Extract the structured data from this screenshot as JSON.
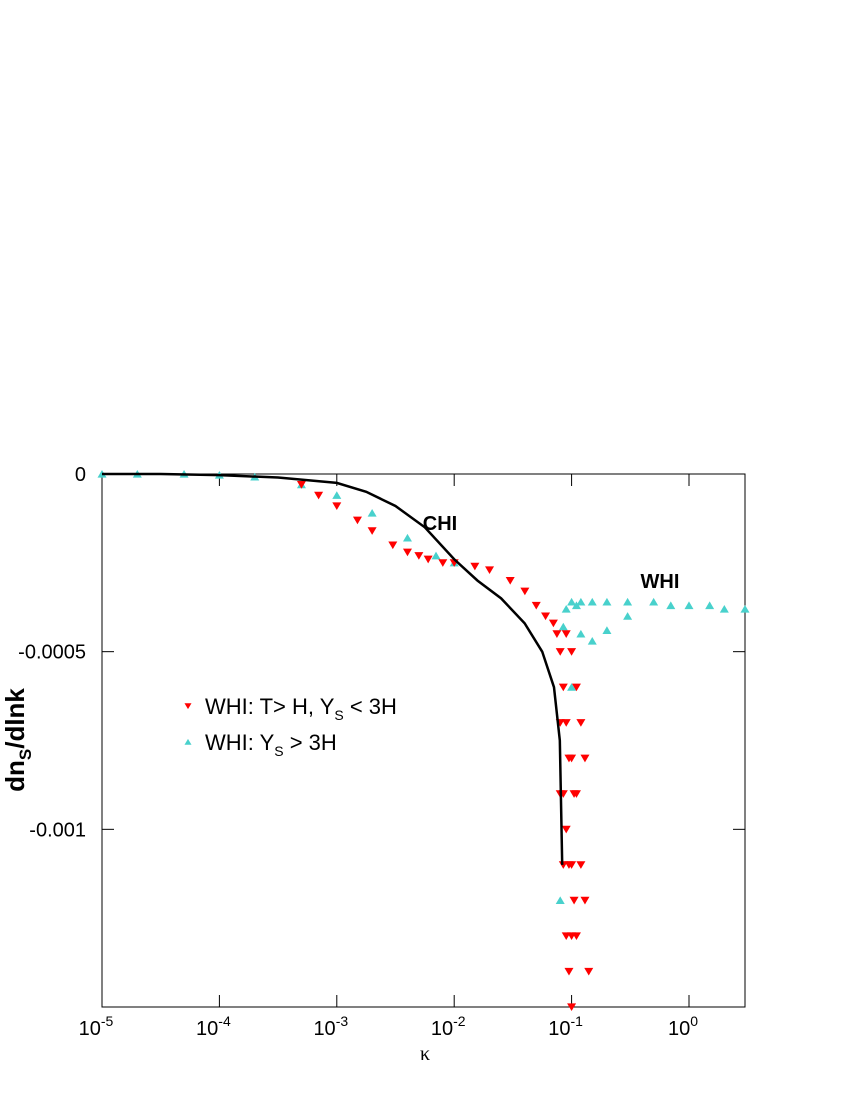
{
  "chart_data": {
    "type": "scatter",
    "x_label": "κ",
    "y_label": [
      {
        "text": "dn"
      },
      {
        "text": "S",
        "sub": true
      },
      {
        "text": "/dlnk"
      }
    ],
    "log_x": true,
    "xlim": [
      1e-05,
      3
    ],
    "ylim": [
      -0.0015,
      0
    ],
    "xticks": [
      {
        "value": 1e-05,
        "label": "10",
        "exponent": "-5"
      },
      {
        "value": 0.0001,
        "label": "10",
        "exponent": "-4"
      },
      {
        "value": 0.001,
        "label": "10",
        "exponent": "-3"
      },
      {
        "value": 0.01,
        "label": "10",
        "exponent": "-2"
      },
      {
        "value": 0.1,
        "label": "10",
        "exponent": "-1"
      },
      {
        "value": 1,
        "label": "10",
        "exponent": "0"
      }
    ],
    "yticks": [
      0,
      -0.0005,
      -0.001
    ],
    "annotations": [
      {
        "text": "CHI",
        "color": "#000000"
      },
      {
        "text": "WHI",
        "color": "#48d1cc"
      }
    ],
    "series": [
      {
        "name": [
          {
            "text": "CHI"
          }
        ],
        "kind": "line",
        "legend": false,
        "color": "#000000",
        "x": [
          1e-05,
          3.16e-05,
          0.0001,
          0.000316,
          0.001,
          0.00178,
          0.00316,
          0.00562,
          0.01,
          0.0158,
          0.0251,
          0.0398,
          0.0562,
          0.0708,
          0.0794,
          0.0832
        ],
        "values": [
          0,
          0,
          -3e-06,
          -1e-05,
          -2.5e-05,
          -5e-05,
          -9e-05,
          -0.00015,
          -0.00024,
          -0.0003,
          -0.00035,
          -0.00042,
          -0.0005,
          -0.0006,
          -0.00075,
          -0.0011
        ]
      },
      {
        "name": [
          {
            "text": "WHI: T> H, Y"
          },
          {
            "text": "S",
            "sub": true
          },
          {
            "text": " < 3H"
          }
        ],
        "kind": "down",
        "legend": true,
        "color": "#ff0000",
        "x": [
          0.0005,
          0.0007,
          0.001,
          0.0015,
          0.002,
          0.003,
          0.004,
          0.005,
          0.006,
          0.008,
          0.01,
          0.015,
          0.02,
          0.03,
          0.04,
          0.05,
          0.06,
          0.07,
          0.075,
          0.08,
          0.08,
          0.08,
          0.085,
          0.085,
          0.085,
          0.09,
          0.09,
          0.09,
          0.09,
          0.095,
          0.095,
          0.095,
          0.1,
          0.1,
          0.1,
          0.1,
          0.1,
          0.105,
          0.105,
          0.11,
          0.11,
          0.11,
          0.12,
          0.12,
          0.13,
          0.13,
          0.14
        ],
        "values": [
          -3e-05,
          -6e-05,
          -9e-05,
          -0.00013,
          -0.00016,
          -0.0002,
          -0.00022,
          -0.00023,
          -0.00024,
          -0.00025,
          -0.00025,
          -0.00026,
          -0.00027,
          -0.0003,
          -0.00033,
          -0.00037,
          -0.0004,
          -0.00042,
          -0.00045,
          -0.0005,
          -0.0007,
          -0.0009,
          -0.0006,
          -0.0009,
          -0.0011,
          -0.00045,
          -0.0007,
          -0.001,
          -0.0013,
          -0.0008,
          -0.0011,
          -0.0014,
          -0.0005,
          -0.0008,
          -0.0011,
          -0.0013,
          -0.0015,
          -0.0009,
          -0.0012,
          -0.0006,
          -0.0009,
          -0.0013,
          -0.0007,
          -0.0011,
          -0.0008,
          -0.0012,
          -0.0014
        ]
      },
      {
        "name": [
          {
            "text": "WHI: Y"
          },
          {
            "text": "S",
            "sub": true
          },
          {
            "text": " > 3H"
          }
        ],
        "kind": "up",
        "legend": true,
        "color": "#48d1cc",
        "x": [
          1e-05,
          2e-05,
          5e-05,
          0.0001,
          0.0002,
          0.0005,
          0.001,
          0.002,
          0.004,
          0.007,
          0.01,
          0.08,
          0.085,
          0.09,
          0.1,
          0.1,
          0.11,
          0.12,
          0.12,
          0.15,
          0.15,
          0.2,
          0.2,
          0.3,
          0.3,
          0.5,
          0.7,
          1,
          1.5,
          2,
          3
        ],
        "values": [
          0,
          0,
          0,
          -3e-06,
          -8e-06,
          -3e-05,
          -6e-05,
          -0.00011,
          -0.00018,
          -0.00023,
          -0.00025,
          -0.0012,
          -0.00043,
          -0.00038,
          -0.00036,
          -0.0006,
          -0.00037,
          -0.00036,
          -0.00045,
          -0.00036,
          -0.00047,
          -0.00036,
          -0.00044,
          -0.00036,
          -0.0004,
          -0.00036,
          -0.00037,
          -0.00037,
          -0.00037,
          -0.00038,
          -0.00038
        ]
      }
    ]
  }
}
